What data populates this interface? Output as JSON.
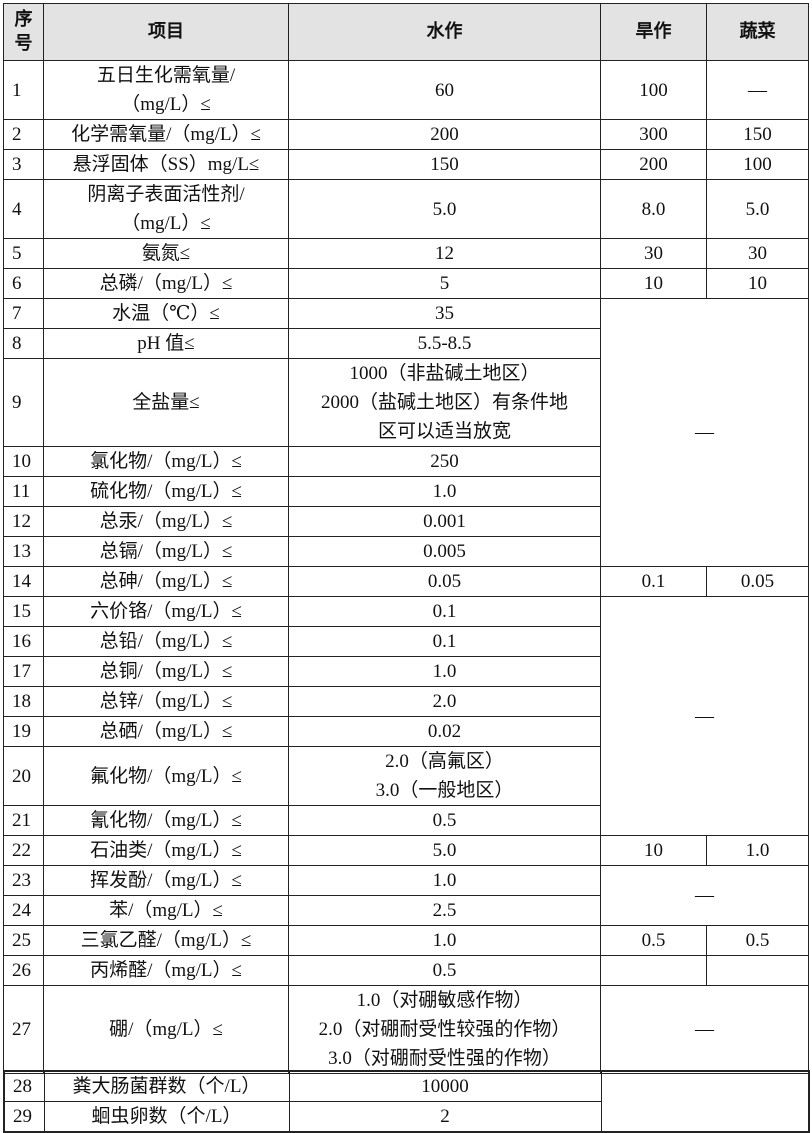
{
  "table": {
    "header": [
      "序\n号",
      "项目",
      "水作",
      "旱作",
      "蔬菜"
    ],
    "rows": [
      {
        "no": "1",
        "item": "五日生化需氧量/\n（mg/L）≤",
        "water": "60",
        "dry": "100",
        "veg": "—"
      },
      {
        "no": "2",
        "item": "化学需氧量/（mg/L）≤",
        "water": "200",
        "dry": "300",
        "veg": "150"
      },
      {
        "no": "3",
        "item": "悬浮固体（SS）mg/L≤",
        "water": "150",
        "dry": "200",
        "veg": "100"
      },
      {
        "no": "4",
        "item": "阴离子表面活性剂/\n（mg/L）≤",
        "water": "5.0",
        "dry": "8.0",
        "veg": "5.0"
      },
      {
        "no": "5",
        "item": "氨氮≤",
        "water": "12",
        "dry": "30",
        "veg": "30"
      },
      {
        "no": "6",
        "item": "总磷/（mg/L）≤",
        "water": "5",
        "dry": "10",
        "veg": "10"
      },
      {
        "no": "7",
        "item": "水温（℃）≤",
        "water": "35",
        "dry_veg": "—"
      },
      {
        "no": "8",
        "item": "pH 值≤",
        "water": "5.5-8.5"
      },
      {
        "no": "9",
        "item": "全盐量≤",
        "water": "1000（非盐碱土地区）\n2000（盐碱土地区）有条件地\n区可以适当放宽"
      },
      {
        "no": "10",
        "item": "氯化物/（mg/L）≤",
        "water": "250"
      },
      {
        "no": "11",
        "item": "硫化物/（mg/L）≤",
        "water": "1.0"
      },
      {
        "no": "12",
        "item": "总汞/（mg/L）≤",
        "water": "0.001"
      },
      {
        "no": "13",
        "item": "总镉/（mg/L）≤",
        "water": "0.005"
      },
      {
        "no": "14",
        "item": "总砷/（mg/L）≤",
        "water": "0.05",
        "dry": "0.1",
        "veg": "0.05"
      },
      {
        "no": "15",
        "item": "六价铬/（mg/L）≤",
        "water": "0.1",
        "dry_veg": "—"
      },
      {
        "no": "16",
        "item": "总铅/（mg/L）≤",
        "water": "0.1"
      },
      {
        "no": "17",
        "item": "总铜/（mg/L）≤",
        "water": "1.0"
      },
      {
        "no": "18",
        "item": "总锌/（mg/L）≤",
        "water": "2.0"
      },
      {
        "no": "19",
        "item": "总硒/（mg/L）≤",
        "water": "0.02"
      },
      {
        "no": "20",
        "item": "氟化物/（mg/L）≤",
        "water": "2.0（高氟区）\n3.0（一般地区）"
      },
      {
        "no": "21",
        "item": "氰化物/（mg/L）≤",
        "water": "0.5"
      },
      {
        "no": "22",
        "item": "石油类/（mg/L）≤",
        "water": "5.0",
        "dry": "10",
        "veg": "1.0"
      },
      {
        "no": "23",
        "item": "挥发酚/（mg/L）≤",
        "water": "1.0",
        "dry_veg": "—"
      },
      {
        "no": "24",
        "item": "苯/（mg/L）≤",
        "water": "2.5"
      },
      {
        "no": "25",
        "item": "三氯乙醛/（mg/L）≤",
        "water": "1.0",
        "dry": "0.5",
        "veg": "0.5"
      },
      {
        "no": "26",
        "item": "丙烯醛/（mg/L）≤",
        "water": "0.5"
      },
      {
        "no": "27",
        "item": "硼/（mg/L）≤",
        "water": "1.0（对硼敏感作物）\n2.0（对硼耐受性较强的作物）\n3.0（对硼耐受性强的作物）",
        "dry_veg": "—"
      }
    ]
  },
  "table2": {
    "rows": [
      {
        "no": "28",
        "item": "粪大肠菌群数（个/L）",
        "water": "10000"
      },
      {
        "no": "29",
        "item": "蛔虫卵数（个/L）",
        "water": "2"
      }
    ]
  }
}
